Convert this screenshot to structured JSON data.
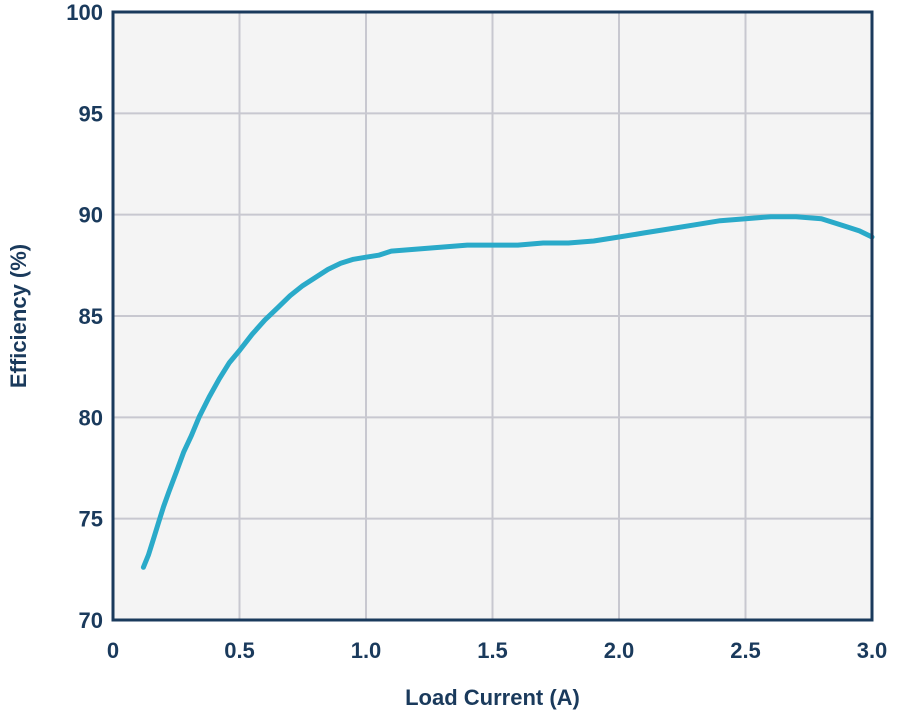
{
  "chart_data": {
    "type": "line",
    "title": "",
    "xlabel": "Load Current (A)",
    "ylabel": "Efficiency (%)",
    "xlim": [
      0,
      3.0
    ],
    "ylim": [
      70,
      100
    ],
    "x_ticks": [
      "0",
      "0.5",
      "1.0",
      "1.5",
      "2.0",
      "2.5",
      "3.0"
    ],
    "y_ticks": [
      "70",
      "75",
      "80",
      "85",
      "90",
      "95",
      "100"
    ],
    "grid": true,
    "legend": "none",
    "colors": {
      "line": "#2aaac9",
      "axis": "#1a3a5c",
      "grid": "#c8c8d0",
      "text": "#1a3a5c",
      "plot_bg": "#f4f4f4"
    },
    "series": [
      {
        "x": [
          0.12,
          0.14,
          0.16,
          0.18,
          0.2,
          0.22,
          0.25,
          0.28,
          0.31,
          0.34,
          0.38,
          0.42,
          0.46,
          0.5,
          0.55,
          0.6,
          0.65,
          0.7,
          0.75,
          0.8,
          0.85,
          0.9,
          0.95,
          1.0,
          1.05,
          1.1,
          1.2,
          1.3,
          1.4,
          1.5,
          1.6,
          1.7,
          1.8,
          1.9,
          2.0,
          2.1,
          2.2,
          2.3,
          2.4,
          2.5,
          2.6,
          2.7,
          2.8,
          2.85,
          2.9,
          2.95,
          3.0
        ],
        "values": [
          72.6,
          73.2,
          74.0,
          74.8,
          75.6,
          76.3,
          77.3,
          78.3,
          79.1,
          80.0,
          81.0,
          81.9,
          82.7,
          83.3,
          84.1,
          84.8,
          85.4,
          86.0,
          86.5,
          86.9,
          87.3,
          87.6,
          87.8,
          87.9,
          88.0,
          88.2,
          88.3,
          88.4,
          88.5,
          88.5,
          88.5,
          88.6,
          88.6,
          88.7,
          88.9,
          89.1,
          89.3,
          89.5,
          89.7,
          89.8,
          89.9,
          89.9,
          89.8,
          89.6,
          89.4,
          89.2,
          88.9
        ]
      }
    ]
  }
}
